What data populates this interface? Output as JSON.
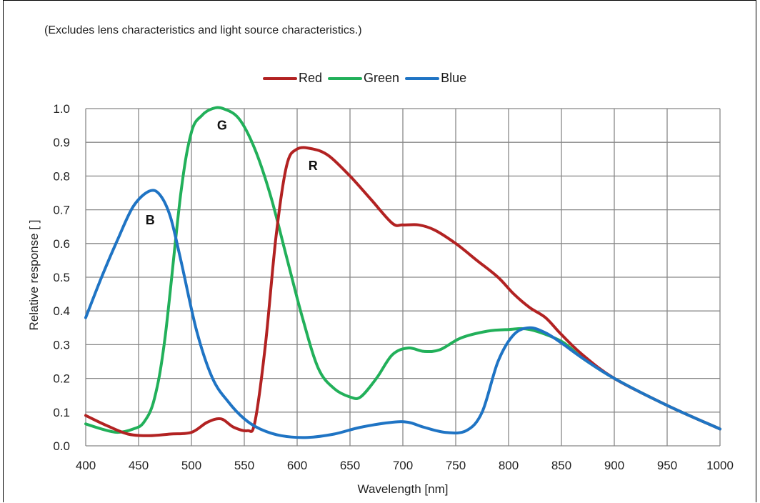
{
  "note": "(Excludes lens characteristics and light source characteristics.)",
  "colors": {
    "red": "#b22222",
    "green": "#22b05a",
    "blue": "#1f74c4",
    "grid": "#888888"
  },
  "chart_data": {
    "type": "line",
    "title": "",
    "xlabel": "Wavelength [nm]",
    "ylabel": "Relative response [ ]",
    "xlim": [
      400,
      1000
    ],
    "ylim": [
      0.0,
      1.0
    ],
    "x_ticks": [
      "400",
      "450",
      "500",
      "550",
      "600",
      "650",
      "700",
      "750",
      "800",
      "850",
      "900",
      "950",
      "1000"
    ],
    "y_ticks": [
      "0.0",
      "0.1",
      "0.2",
      "0.3",
      "0.4",
      "0.5",
      "0.6",
      "0.7",
      "0.8",
      "0.9",
      "1.0"
    ],
    "grid": true,
    "legend_position": "top-center",
    "annotations": [
      {
        "text": "G",
        "x": 529,
        "y": 0.95
      },
      {
        "text": "R",
        "x": 615,
        "y": 0.83
      },
      {
        "text": "B",
        "x": 461,
        "y": 0.67
      }
    ],
    "series": [
      {
        "name": "Red",
        "color": "#b22222",
        "points": [
          [
            400,
            0.09
          ],
          [
            420,
            0.06
          ],
          [
            440,
            0.035
          ],
          [
            460,
            0.03
          ],
          [
            480,
            0.035
          ],
          [
            500,
            0.04
          ],
          [
            515,
            0.07
          ],
          [
            528,
            0.08
          ],
          [
            540,
            0.055
          ],
          [
            553,
            0.045
          ],
          [
            560,
            0.07
          ],
          [
            570,
            0.3
          ],
          [
            580,
            0.62
          ],
          [
            590,
            0.83
          ],
          [
            600,
            0.88
          ],
          [
            615,
            0.88
          ],
          [
            630,
            0.86
          ],
          [
            650,
            0.8
          ],
          [
            670,
            0.73
          ],
          [
            690,
            0.66
          ],
          [
            700,
            0.655
          ],
          [
            715,
            0.655
          ],
          [
            730,
            0.64
          ],
          [
            750,
            0.6
          ],
          [
            770,
            0.55
          ],
          [
            790,
            0.5
          ],
          [
            805,
            0.45
          ],
          [
            820,
            0.41
          ],
          [
            835,
            0.38
          ],
          [
            850,
            0.33
          ],
          [
            870,
            0.27
          ],
          [
            900,
            0.2
          ],
          [
            950,
            0.12
          ],
          [
            1000,
            0.05
          ]
        ]
      },
      {
        "name": "Green",
        "color": "#22b05a",
        "points": [
          [
            400,
            0.065
          ],
          [
            415,
            0.05
          ],
          [
            430,
            0.04
          ],
          [
            445,
            0.05
          ],
          [
            455,
            0.07
          ],
          [
            465,
            0.14
          ],
          [
            475,
            0.32
          ],
          [
            490,
            0.75
          ],
          [
            500,
            0.93
          ],
          [
            510,
            0.98
          ],
          [
            520,
            1.0
          ],
          [
            530,
            1.0
          ],
          [
            545,
            0.97
          ],
          [
            560,
            0.88
          ],
          [
            575,
            0.74
          ],
          [
            590,
            0.56
          ],
          [
            605,
            0.38
          ],
          [
            620,
            0.23
          ],
          [
            635,
            0.17
          ],
          [
            650,
            0.145
          ],
          [
            660,
            0.145
          ],
          [
            675,
            0.2
          ],
          [
            690,
            0.27
          ],
          [
            705,
            0.29
          ],
          [
            720,
            0.28
          ],
          [
            735,
            0.285
          ],
          [
            755,
            0.32
          ],
          [
            780,
            0.34
          ],
          [
            800,
            0.345
          ],
          [
            820,
            0.345
          ],
          [
            850,
            0.31
          ],
          [
            870,
            0.26
          ],
          [
            900,
            0.2
          ],
          [
            950,
            0.12
          ],
          [
            1000,
            0.05
          ]
        ]
      },
      {
        "name": "Blue",
        "color": "#1f74c4",
        "points": [
          [
            400,
            0.38
          ],
          [
            415,
            0.5
          ],
          [
            430,
            0.61
          ],
          [
            445,
            0.71
          ],
          [
            460,
            0.755
          ],
          [
            470,
            0.745
          ],
          [
            480,
            0.68
          ],
          [
            490,
            0.55
          ],
          [
            505,
            0.34
          ],
          [
            520,
            0.2
          ],
          [
            535,
            0.13
          ],
          [
            550,
            0.08
          ],
          [
            565,
            0.05
          ],
          [
            585,
            0.03
          ],
          [
            610,
            0.025
          ],
          [
            635,
            0.035
          ],
          [
            660,
            0.055
          ],
          [
            690,
            0.07
          ],
          [
            705,
            0.07
          ],
          [
            720,
            0.055
          ],
          [
            740,
            0.04
          ],
          [
            760,
            0.045
          ],
          [
            775,
            0.1
          ],
          [
            790,
            0.25
          ],
          [
            805,
            0.33
          ],
          [
            820,
            0.35
          ],
          [
            835,
            0.335
          ],
          [
            850,
            0.305
          ],
          [
            870,
            0.26
          ],
          [
            900,
            0.2
          ],
          [
            950,
            0.12
          ],
          [
            1000,
            0.05
          ]
        ]
      }
    ]
  }
}
